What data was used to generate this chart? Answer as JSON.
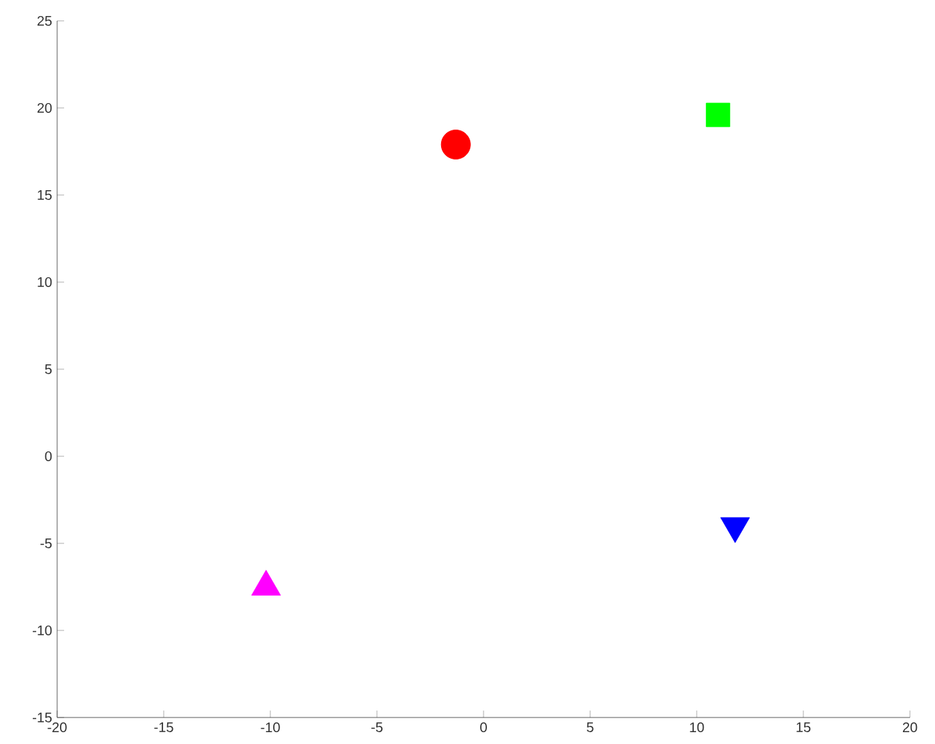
{
  "chart_data": {
    "type": "scatter",
    "xlim": [
      -20,
      20
    ],
    "ylim": [
      -15,
      25
    ],
    "xticks": [
      -20,
      -15,
      -10,
      -5,
      0,
      5,
      10,
      15,
      20
    ],
    "yticks": [
      -15,
      -10,
      -5,
      0,
      5,
      10,
      15,
      20,
      25
    ],
    "grid": false,
    "series": [
      {
        "color": "#ff0000",
        "marker": "circle",
        "x": [
          -1.3
        ],
        "values": [
          17.9
        ]
      },
      {
        "color": "#00ff00",
        "marker": "square",
        "x": [
          11.0
        ],
        "values": [
          19.6
        ]
      },
      {
        "color": "#ff00ff",
        "marker": "triangle",
        "x": [
          -10.2
        ],
        "values": [
          -7.5
        ]
      },
      {
        "color": "#0000ff",
        "marker": "triangle down",
        "x": [
          11.8
        ],
        "values": [
          -4.0
        ]
      }
    ]
  }
}
